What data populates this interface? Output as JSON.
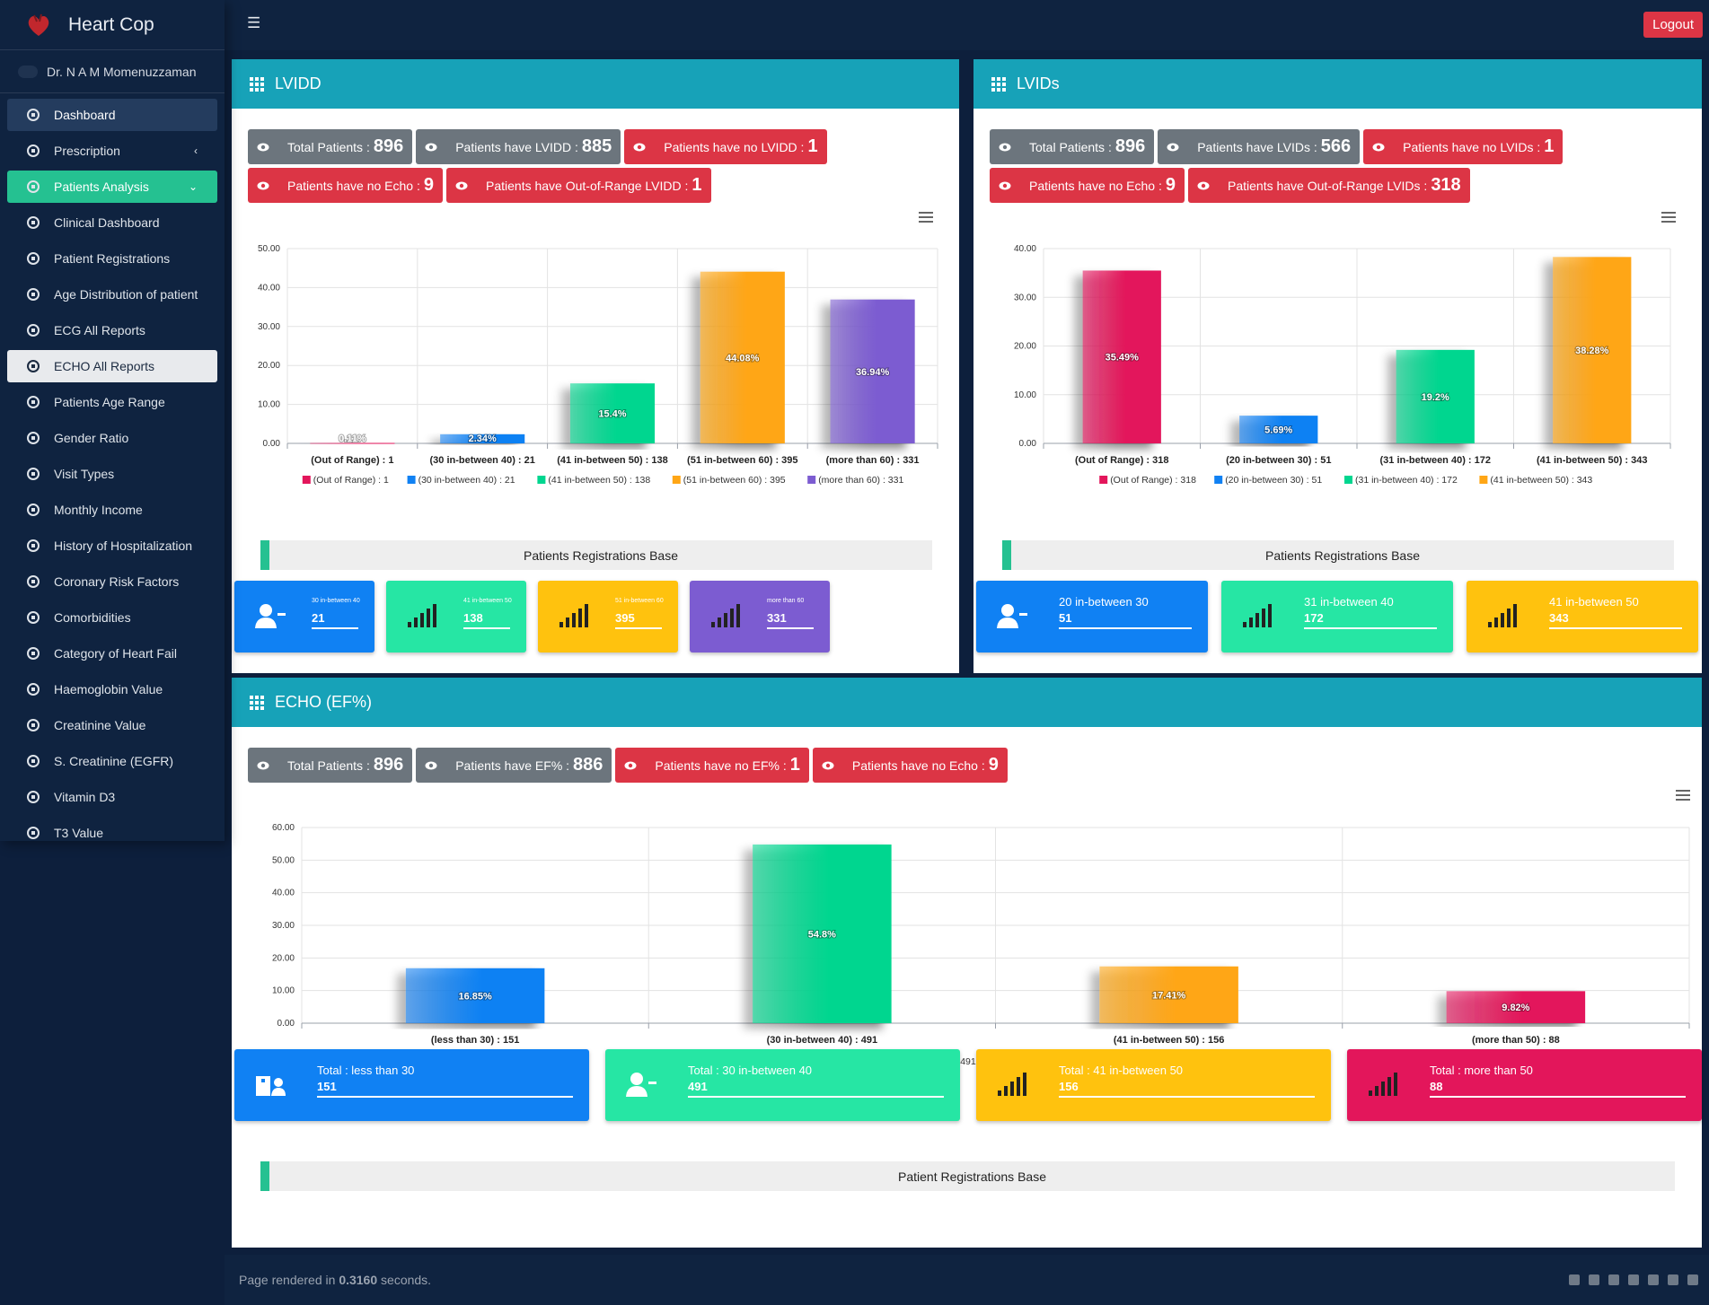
{
  "app": {
    "title": "Heart Cop",
    "user": "Dr. N A M Momenuzzaman",
    "logout": "Logout"
  },
  "sidebar": {
    "items": [
      {
        "label": "Dashboard",
        "icon": "tachometer-icon"
      },
      {
        "label": "Prescription",
        "icon": "file-medical-icon"
      },
      {
        "label": "Patients Analysis",
        "icon": "chart-file-icon"
      },
      {
        "label": "Clinical Dashboard",
        "icon": "home-icon"
      },
      {
        "label": "Patient Registrations",
        "icon": "hospital-user-icon"
      },
      {
        "label": "Age Distribution of patient",
        "icon": "sort-icon"
      },
      {
        "label": "ECG All Reports",
        "icon": "heartbeat-icon"
      },
      {
        "label": "ECHO All Reports",
        "icon": "sitemap-icon"
      },
      {
        "label": "Patients Age Range",
        "icon": "exchange-icon"
      },
      {
        "label": "Gender Ratio",
        "icon": "gender-icon"
      },
      {
        "label": "Visit Types",
        "icon": "glasses-icon"
      },
      {
        "label": "Monthly Income",
        "icon": "dollar-icon"
      },
      {
        "label": "History of Hospitalization",
        "icon": "notes-medical-icon"
      },
      {
        "label": "Coronary Risk Factors",
        "icon": "ban-icon"
      },
      {
        "label": "Comorbidities",
        "icon": "virus-icon"
      },
      {
        "label": "Category of Heart Fail",
        "icon": "heartbeat-icon"
      },
      {
        "label": "Haemoglobin Value",
        "icon": "gitlab-icon"
      },
      {
        "label": "Creatinine Value",
        "icon": "flask-icon"
      },
      {
        "label": "S. Creatinine (EGFR)",
        "icon": "network-icon"
      },
      {
        "label": "Vitamin D3",
        "icon": "eye-dropper-icon"
      },
      {
        "label": "T3 Value",
        "icon": "asterisk-icon"
      }
    ]
  },
  "colors": {
    "header": "#17a2b8",
    "navy": "#0f2340",
    "green": "#25c191",
    "red": "#dc3545",
    "gray": "#6c757d",
    "blue": "#1081f3",
    "teal": "#00d68f",
    "orange": "#ffa616",
    "purple": "#7c5cd1",
    "pink": "#e3165b"
  },
  "lvidd": {
    "title": "LVIDD",
    "badges": [
      {
        "label": "Total Patients : ",
        "value": "896",
        "kind": "gray"
      },
      {
        "label": "Patients have LVIDD : ",
        "value": "885",
        "kind": "gray"
      },
      {
        "label": "Patients have no LVIDD : ",
        "value": "1",
        "kind": "red"
      },
      {
        "label": "Patients have no Echo : ",
        "value": "9",
        "kind": "red"
      },
      {
        "label": "Patients have Out-of-Range LVIDD : ",
        "value": "1",
        "kind": "red"
      }
    ],
    "reg_title": "Patients Registrations Base",
    "tiles": [
      {
        "label": "30 in-between 40",
        "value": "21",
        "color": "#1081f3",
        "icon": "user-minus-icon"
      },
      {
        "label": "41 in-between 50",
        "value": "138",
        "color": "#26e6a4",
        "icon": "signal-icon"
      },
      {
        "label": "51 in-between 60",
        "value": "395",
        "color": "#ffc20e",
        "icon": "signal-icon"
      },
      {
        "label": "more than 60",
        "value": "331",
        "color": "#7c5cd1",
        "icon": "signal-icon"
      }
    ]
  },
  "lvids": {
    "title": "LVIDs",
    "badges": [
      {
        "label": "Total Patients : ",
        "value": "896",
        "kind": "gray"
      },
      {
        "label": "Patients have LVIDs : ",
        "value": "566",
        "kind": "gray"
      },
      {
        "label": "Patients have no LVIDs : ",
        "value": "1",
        "kind": "red"
      },
      {
        "label": "Patients have no Echo : ",
        "value": "9",
        "kind": "red"
      },
      {
        "label": "Patients have Out-of-Range LVIDs : ",
        "value": "318",
        "kind": "red"
      }
    ],
    "reg_title": "Patients Registrations Base",
    "tiles": [
      {
        "label": "20 in-between 30",
        "value": "51",
        "color": "#1081f3",
        "icon": "user-minus-icon"
      },
      {
        "label": "31 in-between 40",
        "value": "172",
        "color": "#26e6a4",
        "icon": "signal-icon"
      },
      {
        "label": "41 in-between 50",
        "value": "343",
        "color": "#ffc20e",
        "icon": "signal-icon"
      }
    ]
  },
  "echo": {
    "title": "ECHO (EF%)",
    "badges": [
      {
        "label": "Total Patients : ",
        "value": "896",
        "kind": "gray"
      },
      {
        "label": "Patients have EF% : ",
        "value": "886",
        "kind": "gray"
      },
      {
        "label": "Patients have no EF% : ",
        "value": "1",
        "kind": "red"
      },
      {
        "label": "Patients have no Echo : ",
        "value": "9",
        "kind": "red"
      }
    ],
    "reg_title": "Patient Registrations Base",
    "tiles": [
      {
        "label": "Total : less than 30",
        "value": "151",
        "color": "#1081f3",
        "icon": "hospital-user-icon"
      },
      {
        "label": "Total : 30 in-between 40",
        "value": "491",
        "color": "#26e6a4",
        "icon": "user-minus-icon"
      },
      {
        "label": "Total : 41 in-between 50",
        "value": "156",
        "color": "#ffc20e",
        "icon": "signal-icon"
      },
      {
        "label": "Total : more than 50",
        "value": "88",
        "color": "#e3165b",
        "icon": "signal-icon"
      }
    ]
  },
  "chart_data": [
    {
      "type": "bar",
      "title": "",
      "ylim": [
        0,
        50
      ],
      "yticks": [
        "0.00",
        "10.00",
        "20.00",
        "30.00",
        "40.00",
        "50.00"
      ],
      "categories": [
        "(Out of Range) : 1",
        "(30 in-between 40) : 21",
        "(41 in-between 50) : 138",
        "(51 in-between 60) : 395",
        "(more than 60) : 331"
      ],
      "legend": [
        "(Out of Range) : 1",
        "(30 in-between 40) : 21",
        "(41 in-between 50) : 138",
        "(51 in-between 60) : 395",
        "(more than 60) : 331"
      ],
      "values": [
        0.11,
        2.34,
        15.4,
        44.08,
        36.94
      ],
      "labels": [
        "0.11%",
        "2.34%",
        "15.4%",
        "44.08%",
        "36.94%"
      ],
      "colors": [
        "#e3165b",
        "#1081f3",
        "#00d68f",
        "#ffa616",
        "#7c5cd1"
      ]
    },
    {
      "type": "bar",
      "title": "",
      "ylim": [
        0,
        40
      ],
      "yticks": [
        "0.00",
        "10.00",
        "20.00",
        "30.00",
        "40.00"
      ],
      "categories": [
        "(Out of Range) : 318",
        "(20 in-between 30) : 51",
        "(31 in-between 40) : 172",
        "(41 in-between 50) : 343"
      ],
      "legend": [
        "(Out of Range) : 318",
        "(20 in-between 30) : 51",
        "(31 in-between 40) : 172",
        "(41 in-between 50) : 343"
      ],
      "values": [
        35.49,
        5.69,
        19.2,
        38.28
      ],
      "labels": [
        "35.49%",
        "5.69%",
        "19.2%",
        "38.28%"
      ],
      "colors": [
        "#e3165b",
        "#1081f3",
        "#00d68f",
        "#ffa616"
      ]
    },
    {
      "type": "bar",
      "title": "",
      "ylim": [
        0,
        60
      ],
      "yticks": [
        "0.00",
        "10.00",
        "20.00",
        "30.00",
        "40.00",
        "50.00",
        "60.00"
      ],
      "categories": [
        "(less than 30) : 151",
        "(30 in-between 40) : 491",
        "(41 in-between 50) : 156",
        "(more than 50) : 88"
      ],
      "legend": [
        "(less than 30) : 151",
        "(30 in-between 40) : 491",
        "(41 in-between 50) : 156",
        "(more than 50) : 88"
      ],
      "values": [
        16.85,
        54.8,
        17.41,
        9.82
      ],
      "labels": [
        "16.85%",
        "54.8%",
        "17.41%",
        "9.82%"
      ],
      "colors": [
        "#1081f3",
        "#00d68f",
        "#ffa616",
        "#e3165b"
      ]
    }
  ],
  "footer": {
    "text_pre": "Page rendered in ",
    "time": "0.3160",
    "text_post": " seconds."
  }
}
